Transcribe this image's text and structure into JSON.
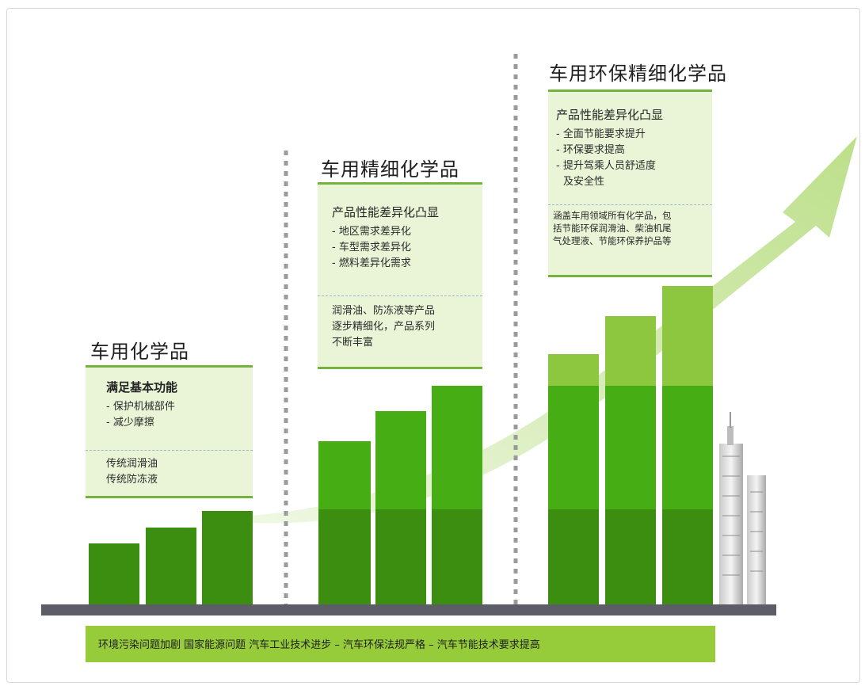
{
  "stages": [
    {
      "title": "车用化学品",
      "heading": "满足基本功能",
      "bullets": [
        "- 保护机械部件",
        "- 减少摩擦"
      ],
      "note_lines": [
        "传统润滑油",
        "传统防冻液"
      ]
    },
    {
      "title": "车用精细化学品",
      "heading": "产品性能差异化凸显",
      "bullets": [
        "- 地区需求差异化",
        "- 车型需求差异化",
        "- 燃料差异化需求"
      ],
      "note_lines": [
        "润滑油、防冻液等产品",
        "逐步精细化，产品系列",
        "不断丰富"
      ]
    },
    {
      "title": "车用环保精细化学品",
      "heading": "产品性能差异化凸显",
      "bullets": [
        "- 全面节能要求提升",
        "- 环保要求提高",
        "- 提升驾乘人员舒适度",
        "及安全性"
      ],
      "note_lines": [
        "涵盖车用领域所有化学品，包",
        "括节能环保润滑油、柴油机尾",
        "气处理液、节能环保养护品等"
      ]
    }
  ],
  "footer": "环境污染问题加剧  国家能源问题    汽车工业技术进步 – 汽车环保法规严格 – 汽车节能技术要求提高",
  "colors": {
    "bar_dark": "#3c8e11",
    "bar_mid": "#46ae14",
    "bar_light": "#8dc63f",
    "arrow": "#d6eab6",
    "ground": "#5d5d68",
    "divider": "#9a9a9a",
    "footer_bg": "#96cb3a",
    "panel_bg": "#e9f5d6"
  },
  "icons": [
    "growth-arrow-icon",
    "skyscraper-icon"
  ]
}
